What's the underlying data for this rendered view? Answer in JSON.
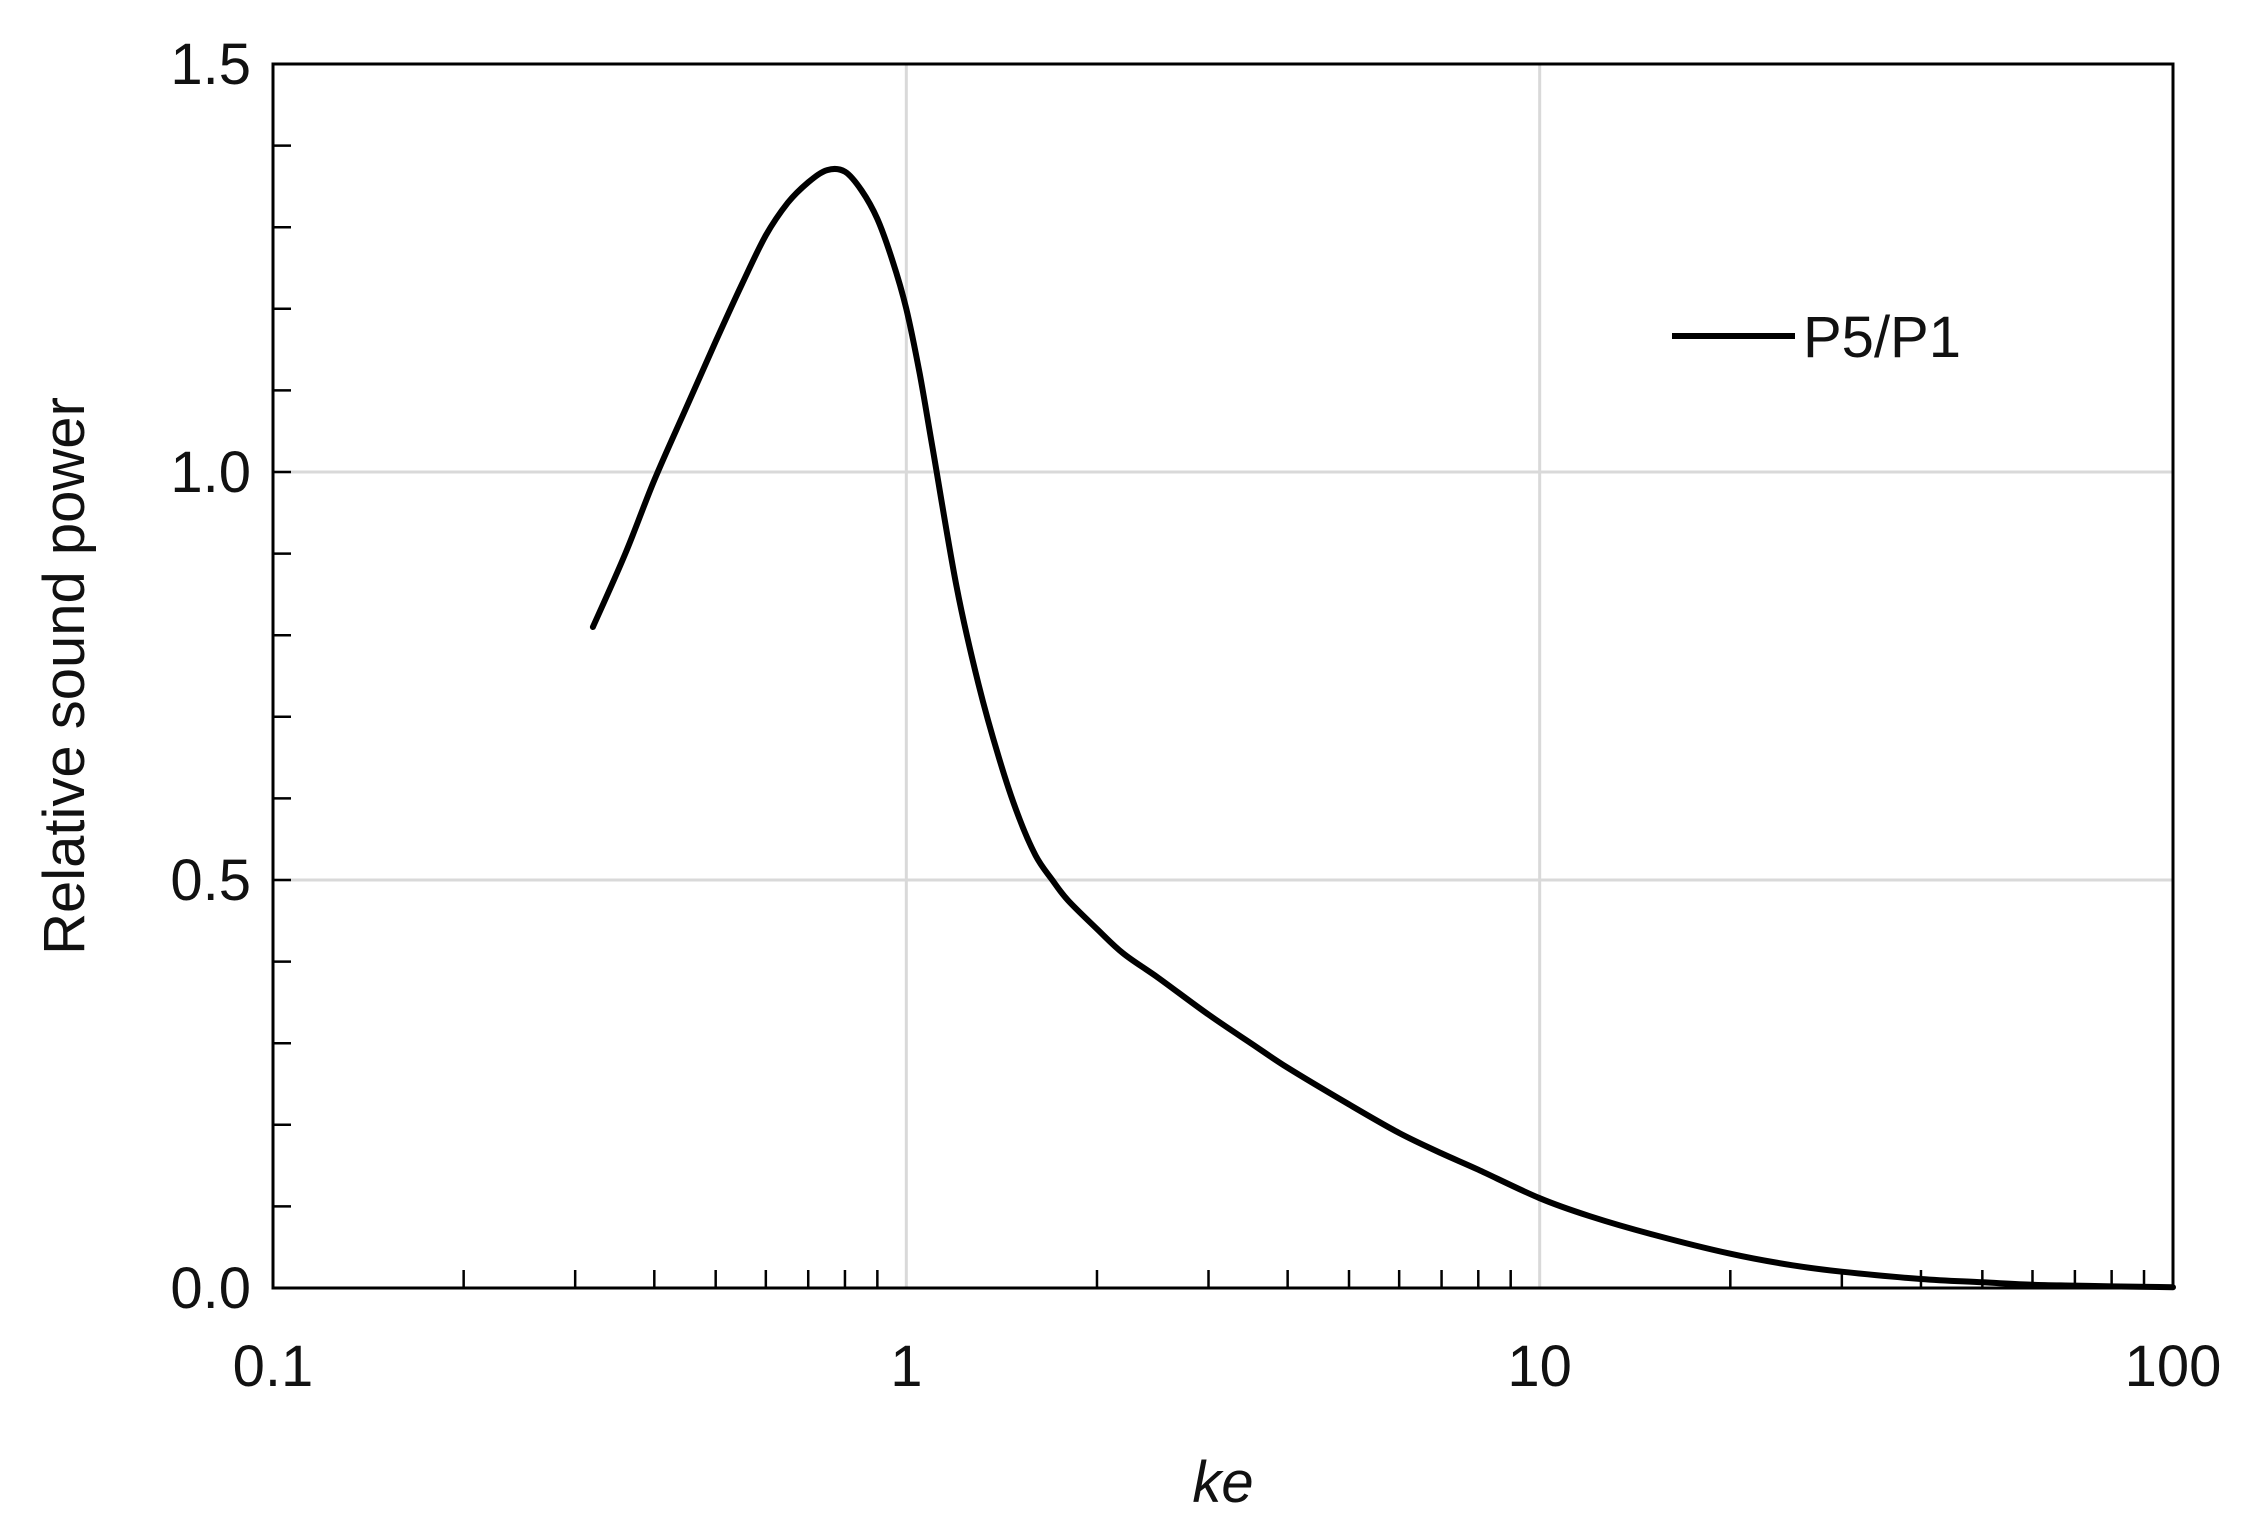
{
  "chart_data": {
    "type": "line",
    "title": "",
    "xlabel": "ke",
    "ylabel": "Relative sound power",
    "x_scale": "log",
    "xlim": [
      0.1,
      100
    ],
    "ylim": [
      0,
      1.5
    ],
    "grid": true,
    "legend_position": "top-right",
    "x_tick_labels": [
      "0.1",
      "1",
      "10",
      "100"
    ],
    "y_tick_labels": [
      "0.0",
      "0.5",
      "1.0",
      "1.5"
    ],
    "series": [
      {
        "name": "P5/P1",
        "color": "#000000",
        "x": [
          0.32,
          0.36,
          0.4,
          0.45,
          0.5,
          0.55,
          0.6,
          0.65,
          0.7,
          0.75,
          0.8,
          0.85,
          0.9,
          0.95,
          1.0,
          1.05,
          1.1,
          1.2,
          1.3,
          1.4,
          1.5,
          1.6,
          1.7,
          1.8,
          2.0,
          2.2,
          2.5,
          3.0,
          3.5,
          4.0,
          5.0,
          6.0,
          7.0,
          8.0,
          10.0,
          12.0,
          15.0,
          20.0,
          25.0,
          30.0,
          40.0,
          50.0,
          60.0,
          70.0,
          80.0,
          100.0
        ],
        "y": [
          0.81,
          0.9,
          0.99,
          1.08,
          1.16,
          1.23,
          1.29,
          1.33,
          1.355,
          1.37,
          1.368,
          1.345,
          1.31,
          1.26,
          1.2,
          1.12,
          1.03,
          0.86,
          0.74,
          0.65,
          0.58,
          0.53,
          0.5,
          0.475,
          0.44,
          0.41,
          0.38,
          0.335,
          0.3,
          0.27,
          0.225,
          0.19,
          0.165,
          0.145,
          0.11,
          0.088,
          0.066,
          0.042,
          0.028,
          0.02,
          0.011,
          0.007,
          0.004,
          0.003,
          0.002,
          0.001
        ]
      }
    ]
  }
}
